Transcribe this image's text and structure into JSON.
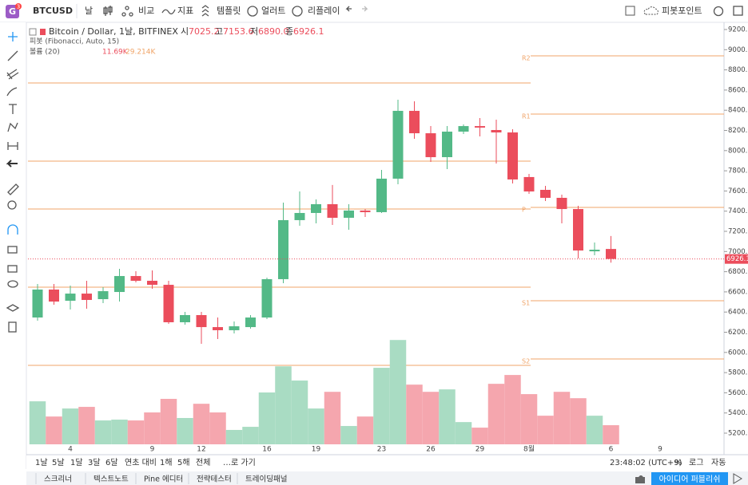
{
  "toolbar": {
    "logo": "G",
    "badge": "3",
    "symbol": "BTCUSD",
    "interval": "날",
    "items": [
      "비교",
      "지표",
      "템플릿",
      "얼러트",
      "리플레이"
    ],
    "pivot_button": "피봇포인트"
  },
  "legend": {
    "title": "Bitcoin / Dollar, 1날, BITFINEX",
    "ohlc": [
      {
        "key": "시",
        "val": "7025.2"
      },
      {
        "key": "고",
        "val": "7153.6"
      },
      {
        "key": "저",
        "val": "6890.0"
      },
      {
        "key": "종",
        "val": "6926.1"
      }
    ],
    "pivot": "피봇 (Fibonacci, Auto, 15)",
    "volume": "볼륨 (20)",
    "volume_values": [
      "11.69K",
      "29.214K"
    ]
  },
  "chart_data": {
    "type": "candlestick",
    "categories": [
      null,
      null,
      "4",
      null,
      null,
      null,
      null,
      "9",
      null,
      null,
      "12",
      null,
      null,
      null,
      "16",
      null,
      null,
      "19",
      null,
      null,
      null,
      "23",
      null,
      null,
      "26",
      null,
      null,
      "29",
      null,
      null,
      "8월",
      null,
      null,
      null,
      null,
      "6",
      null,
      null,
      "9"
    ],
    "open": [
      6346,
      6623,
      6512,
      6583,
      6528,
      6599,
      6757,
      6710,
      6670,
      6299,
      6370,
      6251,
      6220,
      6251,
      6346,
      6726,
      7311,
      7382,
      7469,
      7334,
      7406,
      7390,
      7722,
      8394,
      8172,
      7935,
      8188,
      8243,
      8204,
      8180,
      7738,
      7611,
      7532,
      7421,
      7002,
      7025.2,
      null,
      null,
      null
    ],
    "high": [
      6678,
      6678,
      6662,
      6710,
      6647,
      6828,
      6805,
      6813,
      6710,
      6402,
      6402,
      6346,
      6307,
      6370,
      6741,
      7485,
      7595,
      7516,
      7659,
      7469,
      7421,
      7809,
      8504,
      8489,
      8243,
      8243,
      8259,
      8323,
      8307,
      8212,
      7769,
      7651,
      7564,
      7453,
      7089,
      7153.6,
      null,
      null,
      null
    ],
    "low": [
      6315,
      6473,
      6425,
      6433,
      6489,
      6504,
      6694,
      6631,
      6283,
      6275,
      6085,
      6133,
      6188,
      6236,
      6330,
      6686,
      7255,
      7279,
      7263,
      7216,
      7342,
      7382,
      7666,
      8117,
      7888,
      7817,
      8164,
      8141,
      7872,
      7674,
      7572,
      7500,
      7279,
      6931,
      6963,
      6890,
      null,
      null,
      null
    ],
    "close": [
      6623,
      6504,
      6583,
      6520,
      6607,
      6757,
      6710,
      6670,
      6299,
      6370,
      6251,
      6220,
      6259,
      6346,
      6726,
      7311,
      7382,
      7469,
      7334,
      7406,
      7390,
      7722,
      8394,
      8172,
      7935,
      8188,
      8243,
      8228,
      8180,
      7714,
      7595,
      7532,
      7421,
      7010,
      7018,
      6926.1,
      null,
      null,
      null
    ],
    "volume": [
      26.3,
      17.0,
      21.9,
      22.9,
      14.6,
      15.1,
      14.6,
      19.5,
      27.8,
      16.1,
      24.8,
      19.5,
      8.8,
      10.7,
      31.7,
      47.7,
      39.0,
      21.9,
      32.1,
      11.2,
      17.0,
      46.8,
      63.8,
      36.5,
      32.1,
      33.6,
      13.6,
      10.2,
      37.0,
      42.4,
      30.7,
      17.5,
      32.1,
      28.2,
      17.5,
      11.69,
      null,
      null,
      null
    ],
    "up_color": "#53b987",
    "down_color": "#eb4d5c",
    "up_volume_color": "#a9dcc3",
    "down_volume_color": "#f5a6ae",
    "ylim": [
      5200,
      9200
    ],
    "yticks": [
      {
        "value": 5200,
        "label": "5200.0"
      },
      {
        "value": 5400,
        "label": "5400.0"
      },
      {
        "value": 5600,
        "label": "5600.0"
      },
      {
        "value": 5800,
        "label": "5800.0"
      },
      {
        "value": 6000,
        "label": "6000.0"
      },
      {
        "value": 6200,
        "label": "6200.0"
      },
      {
        "value": 6400,
        "label": "6400.0"
      },
      {
        "value": 6600,
        "label": "6600.0"
      },
      {
        "value": 6800,
        "label": "6800.0"
      },
      {
        "value": 7000,
        "label": "7000.0"
      },
      {
        "value": 7200,
        "label": "7200.0"
      },
      {
        "value": 7400,
        "label": "7400.0"
      },
      {
        "value": 7600,
        "label": "7600.0"
      },
      {
        "value": 7800,
        "label": "7800.0"
      },
      {
        "value": 8000,
        "label": "8000.0"
      },
      {
        "value": 8200,
        "label": "8200.0"
      },
      {
        "value": 8400,
        "label": "8400.0"
      },
      {
        "value": 8600,
        "label": "8600.0"
      },
      {
        "value": 8800,
        "label": "8800.0"
      },
      {
        "value": 9000,
        "label": "9000.0"
      },
      {
        "value": 9200,
        "label": "9200.0"
      }
    ],
    "pivot_color": "#f0a468",
    "pivots_previous": [
      8670,
      7896,
      7421,
      6647,
      5872
    ],
    "pivots_current": {
      "labels": [
        "R2",
        "R1",
        "P",
        "S1",
        "S2"
      ],
      "values": [
        8939,
        8362,
        7437,
        6512,
        5935
      ]
    }
  },
  "time_bar": {
    "ranges": [
      "1날",
      "5날",
      "1달",
      "3달",
      "6달",
      "연초 대비",
      "1해",
      "5해",
      "전체"
    ],
    "goto": "…로 가기",
    "clock": "23:48:02 (UTC+9)",
    "percent": "%",
    "log": "로그",
    "auto": "자동"
  },
  "footer": {
    "tabs": [
      "스크리너",
      "텍스트노트",
      "Pine 에디터",
      "전략테스터",
      "트레이딩패널"
    ],
    "publish": "아이디어 퍼블리쉬"
  }
}
